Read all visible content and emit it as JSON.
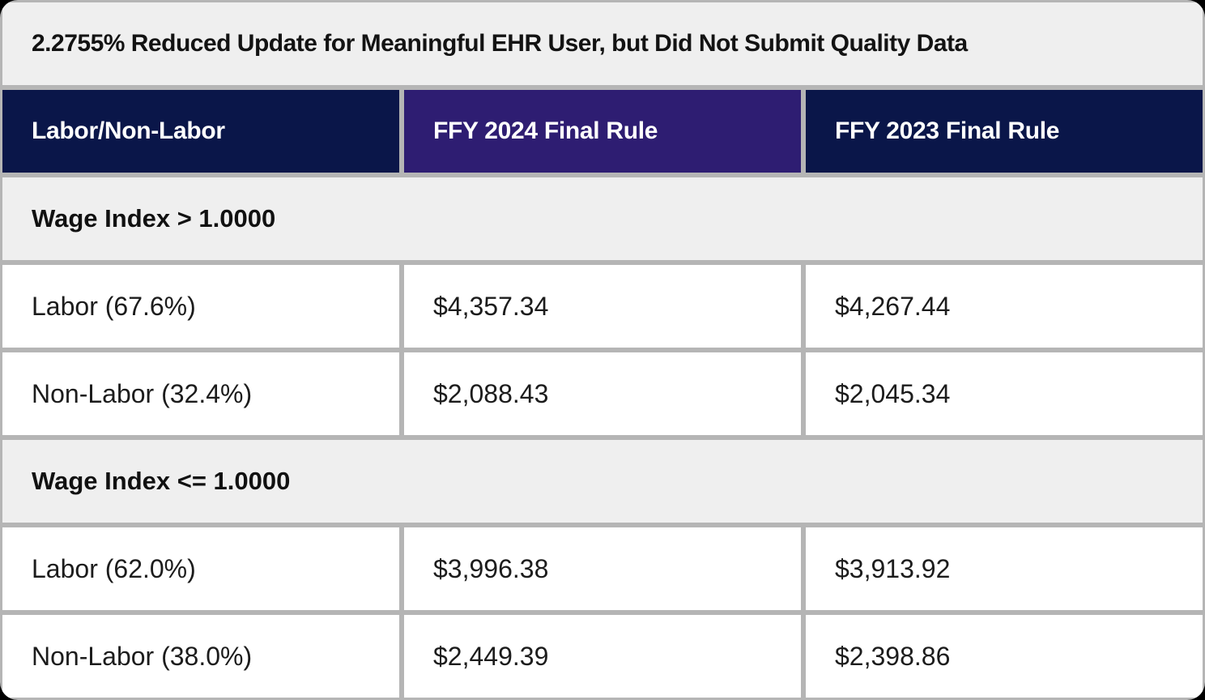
{
  "chart_data": {
    "type": "table",
    "title": "2.2755% Reduced Update for Meaningful EHR User, but Did Not Submit Quality Data",
    "columns": [
      "Labor/Non-Labor",
      "FFY 2024 Final Rule",
      "FFY 2023 Final Rule"
    ],
    "rows": [
      [
        "Wage Index > 1.0000",
        "",
        ""
      ],
      [
        "Labor (67.6%)",
        "$4,357.34",
        "$4,267.44"
      ],
      [
        "Non-Labor (32.4%)",
        "$2,088.43",
        "$2,045.34"
      ],
      [
        "Wage Index <= 1.0000",
        "",
        ""
      ],
      [
        "Labor (62.0%)",
        "$3,996.38",
        "$3,913.92"
      ],
      [
        "Non-Labor (38.0%)",
        "$2,449.39",
        "$2,398.86"
      ]
    ],
    "layout_hints": {
      "section_rows_span_full_width": true,
      "header_row_after_title": true
    }
  },
  "colors": {
    "header_navy": "#0a1649",
    "header_purple": "#2e1d72",
    "title_bg": "#efefef",
    "section_bg": "#efefef",
    "grid_line": "#b5b5b5",
    "data_cell_bg": "#ffffff",
    "header_text": "#ffffff",
    "body_text": "#1c1c1c"
  }
}
